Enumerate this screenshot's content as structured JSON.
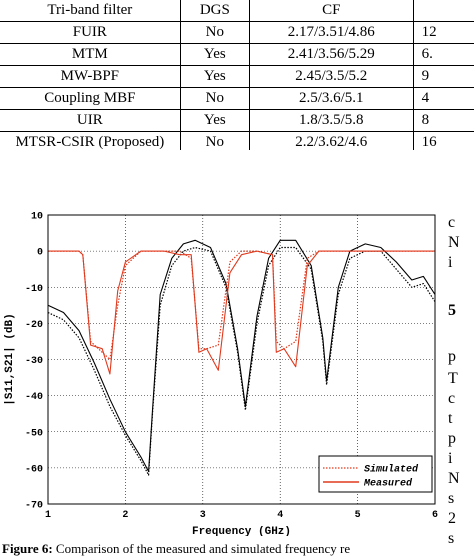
{
  "table": {
    "headers": [
      "Tri-band filter",
      "DGS",
      "CF",
      ""
    ],
    "rows": [
      [
        "FUIR",
        "No",
        "2.17/3.51/4.86",
        "12"
      ],
      [
        "MTM",
        "Yes",
        "2.41/3.56/5.29",
        "6."
      ],
      [
        "MW-BPF",
        "Yes",
        "2.45/3.5/5.2",
        "9"
      ],
      [
        "Coupling MBF",
        "No",
        "2.5/3.6/5.1",
        "4"
      ],
      [
        "UIR",
        "Yes",
        "1.8/3.5/5.8",
        "8"
      ],
      [
        "MTSR-CSIR (Proposed)",
        "No",
        "2.2/3.62/4.6",
        "16"
      ]
    ]
  },
  "right_text": [
    "c",
    "N",
    "i",
    "5",
    "p",
    "T",
    "c",
    "t",
    "p",
    "i",
    "N",
    "s",
    "2",
    "s"
  ],
  "caption": {
    "label": "Figure 6:",
    "text": " Comparison of the measured and simulated frequency re"
  },
  "chart_data": {
    "type": "line",
    "xlabel": "Frequency (GHz)",
    "ylabel": "|S11,S21| (dB)",
    "xlim": [
      1,
      6
    ],
    "ylim": [
      -70,
      10
    ],
    "xticks": [
      "1",
      "2",
      "3",
      "4",
      "5",
      "6"
    ],
    "yticks": [
      "10",
      "0",
      "-10",
      "-20",
      "-30",
      "-40",
      "-50",
      "-60",
      "-70"
    ],
    "grid": true,
    "legend_position": "bottom-right",
    "colors": {
      "s11": "#000000",
      "s21": "#e03a1e"
    },
    "series": [
      {
        "name": "Simulated",
        "style": "dotted",
        "x": [
          1.0,
          1.2,
          1.4,
          1.6,
          1.8,
          2.0,
          2.2,
          2.3,
          2.35,
          2.45,
          2.6,
          2.75,
          2.9,
          3.1,
          3.3,
          3.45,
          3.55,
          3.7,
          3.85,
          4.0,
          4.2,
          4.4,
          4.55,
          4.6,
          4.75,
          4.9,
          5.1,
          5.3,
          5.5,
          5.7,
          5.85,
          6.0
        ],
        "y": [
          -17,
          -19,
          -24,
          -33,
          -43,
          -51,
          -58,
          -62,
          -45,
          -15,
          -4,
          0,
          1,
          0,
          -10,
          -28,
          -44,
          -20,
          -4,
          1,
          1,
          -5,
          -25,
          -37,
          -12,
          -2,
          0,
          0,
          -5,
          -10,
          -9,
          -14
        ]
      },
      {
        "name": "Measured",
        "style": "solid",
        "x": [
          1.0,
          1.2,
          1.4,
          1.6,
          1.8,
          2.0,
          2.2,
          2.3,
          2.35,
          2.45,
          2.6,
          2.75,
          2.9,
          3.1,
          3.3,
          3.45,
          3.55,
          3.7,
          3.85,
          4.0,
          4.2,
          4.4,
          4.55,
          4.6,
          4.75,
          4.9,
          5.1,
          5.3,
          5.5,
          5.7,
          5.85,
          6.0
        ],
        "y": [
          -15,
          -17,
          -22,
          -31,
          -41,
          -50,
          -57,
          -61,
          -44,
          -12,
          -2,
          2,
          3,
          1,
          -9,
          -27,
          -43,
          -18,
          -2,
          3,
          3,
          -4,
          -24,
          -36,
          -10,
          0,
          2,
          1,
          -3,
          -8,
          -7,
          -12
        ]
      },
      {
        "name": "",
        "style": "dotted",
        "x": [
          1.0,
          1.2,
          1.4,
          1.45,
          1.55,
          1.7,
          1.8,
          1.9,
          2.0,
          2.2,
          2.5,
          2.7,
          2.85,
          2.95,
          3.05,
          3.2,
          3.35,
          3.5,
          3.7,
          3.9,
          3.95,
          4.05,
          4.2,
          4.35,
          4.5,
          4.7,
          5.0,
          5.5,
          6.0
        ],
        "y": [
          0,
          0,
          0,
          -1,
          -25,
          -28,
          -30,
          -15,
          -4,
          0,
          0,
          0,
          -2,
          -27,
          -27,
          -26,
          -3,
          0,
          0,
          -1,
          -25,
          -27,
          -25,
          -2,
          0,
          0,
          0,
          0,
          0
        ]
      },
      {
        "name": "",
        "style": "solid",
        "x": [
          1.0,
          1.2,
          1.4,
          1.45,
          1.55,
          1.7,
          1.8,
          1.9,
          2.0,
          2.2,
          2.5,
          2.7,
          2.85,
          2.95,
          3.05,
          3.2,
          3.35,
          3.5,
          3.7,
          3.9,
          3.95,
          4.05,
          4.2,
          4.35,
          4.5,
          4.7,
          5.0,
          5.5,
          6.0
        ],
        "y": [
          0,
          0,
          0,
          -1,
          -26,
          -27,
          -34,
          -11,
          -3,
          0,
          0,
          -1,
          -1,
          -28,
          -27,
          -33,
          -6,
          -1,
          0,
          -1,
          -28,
          -27,
          -32,
          -4,
          0,
          0,
          0,
          0,
          0
        ]
      }
    ],
    "legend": [
      {
        "label": "Simulated",
        "style": "dotted"
      },
      {
        "label": "Measured",
        "style": "solid"
      }
    ]
  }
}
